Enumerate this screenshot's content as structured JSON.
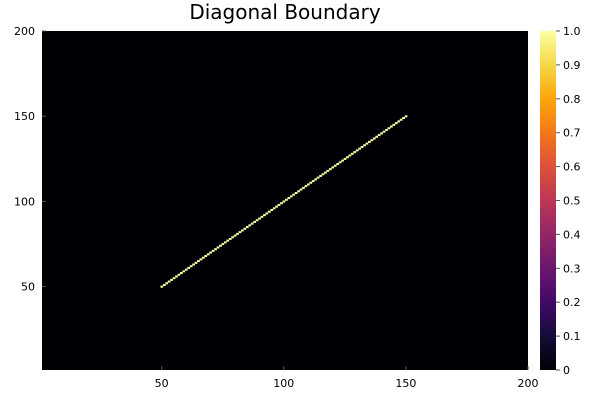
{
  "chart_data": {
    "type": "heatmap",
    "title": "Diagonal Boundary",
    "xlabel": "",
    "ylabel": "",
    "xlim": [
      1,
      200
    ],
    "ylim": [
      1,
      200
    ],
    "x_ticks": [
      50,
      100,
      150,
      200
    ],
    "y_ticks": [
      50,
      100,
      150,
      200
    ],
    "grid": false,
    "background_value": 0,
    "boundary": {
      "value": 1,
      "x_start": 50,
      "y_start": 50,
      "x_end": 150,
      "y_end": 150
    },
    "colorbar": {
      "colormap": "inferno",
      "range": [
        0.0,
        1.0
      ],
      "ticks": [
        "0",
        "0.1",
        "0.2",
        "0.3",
        "0.4",
        "0.5",
        "0.6",
        "0.7",
        "0.8",
        "0.9",
        "1.0"
      ]
    }
  },
  "colors": {
    "cold": "#000004",
    "hot": "#fcffa4"
  }
}
